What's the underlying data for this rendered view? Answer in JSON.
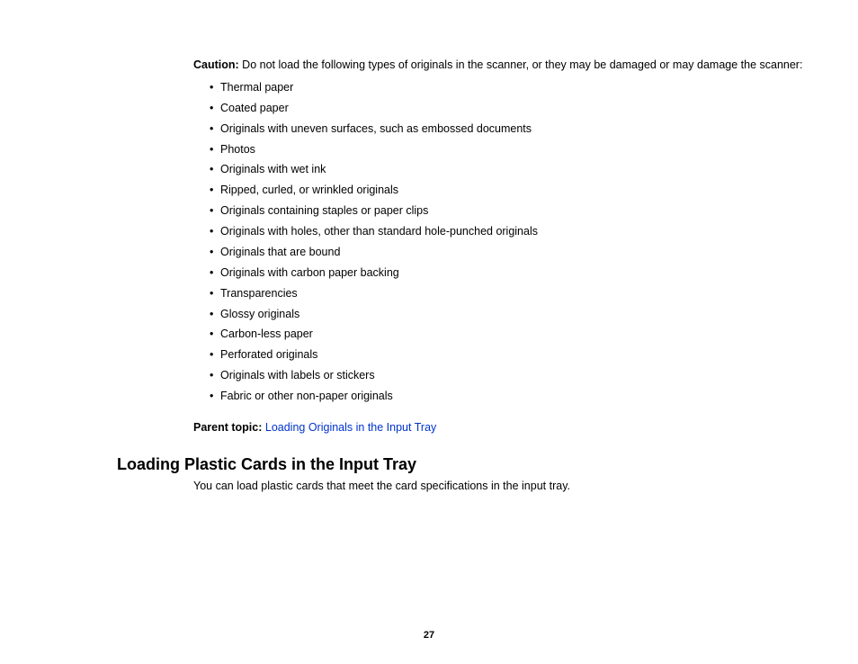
{
  "caution": {
    "label": "Caution:",
    "text": " Do not load the following types of originals in the scanner, or they may be damaged or may damage the scanner:",
    "items": [
      "Thermal paper",
      "Coated paper",
      "Originals with uneven surfaces, such as embossed documents",
      "Photos",
      "Originals with wet ink",
      "Ripped, curled, or wrinkled originals",
      "Originals containing staples or paper clips",
      "Originals with holes, other than standard hole-punched originals",
      "Originals that are bound",
      "Originals with carbon paper backing",
      "Transparencies",
      "Glossy originals",
      "Carbon-less paper",
      "Perforated originals",
      "Originals with labels or stickers",
      "Fabric or other non-paper originals"
    ]
  },
  "parent_topic": {
    "label": "Parent topic: ",
    "link": "Loading Originals in the Input Tray"
  },
  "section": {
    "heading": "Loading Plastic Cards in the Input Tray",
    "body": "You can load plastic cards that meet the card specifications in the input tray."
  },
  "page_number": "27"
}
